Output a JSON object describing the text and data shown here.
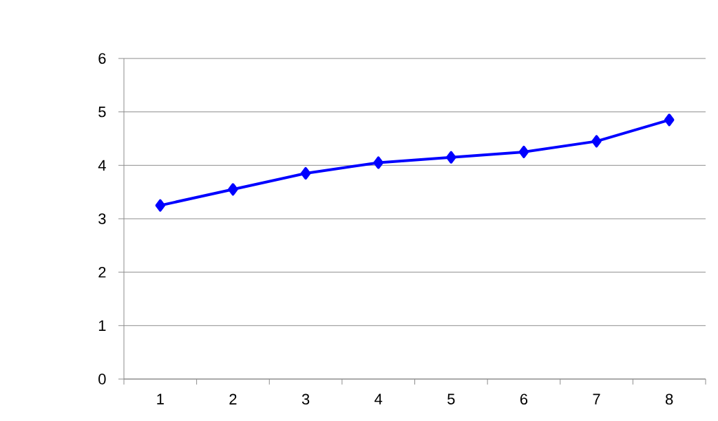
{
  "chart_data": {
    "type": "line",
    "categories": [
      "1",
      "2",
      "3",
      "4",
      "5",
      "6",
      "7",
      "8"
    ],
    "series": [
      {
        "color": "#0000ff",
        "values": [
          3.25,
          3.55,
          3.85,
          4.05,
          4.15,
          4.25,
          4.45,
          4.85
        ]
      }
    ],
    "ylim": [
      0,
      6
    ],
    "yticks": [
      0,
      1,
      2,
      3,
      4,
      5,
      6
    ],
    "grid": "y",
    "marker": "diamond",
    "line_style": "solid"
  }
}
